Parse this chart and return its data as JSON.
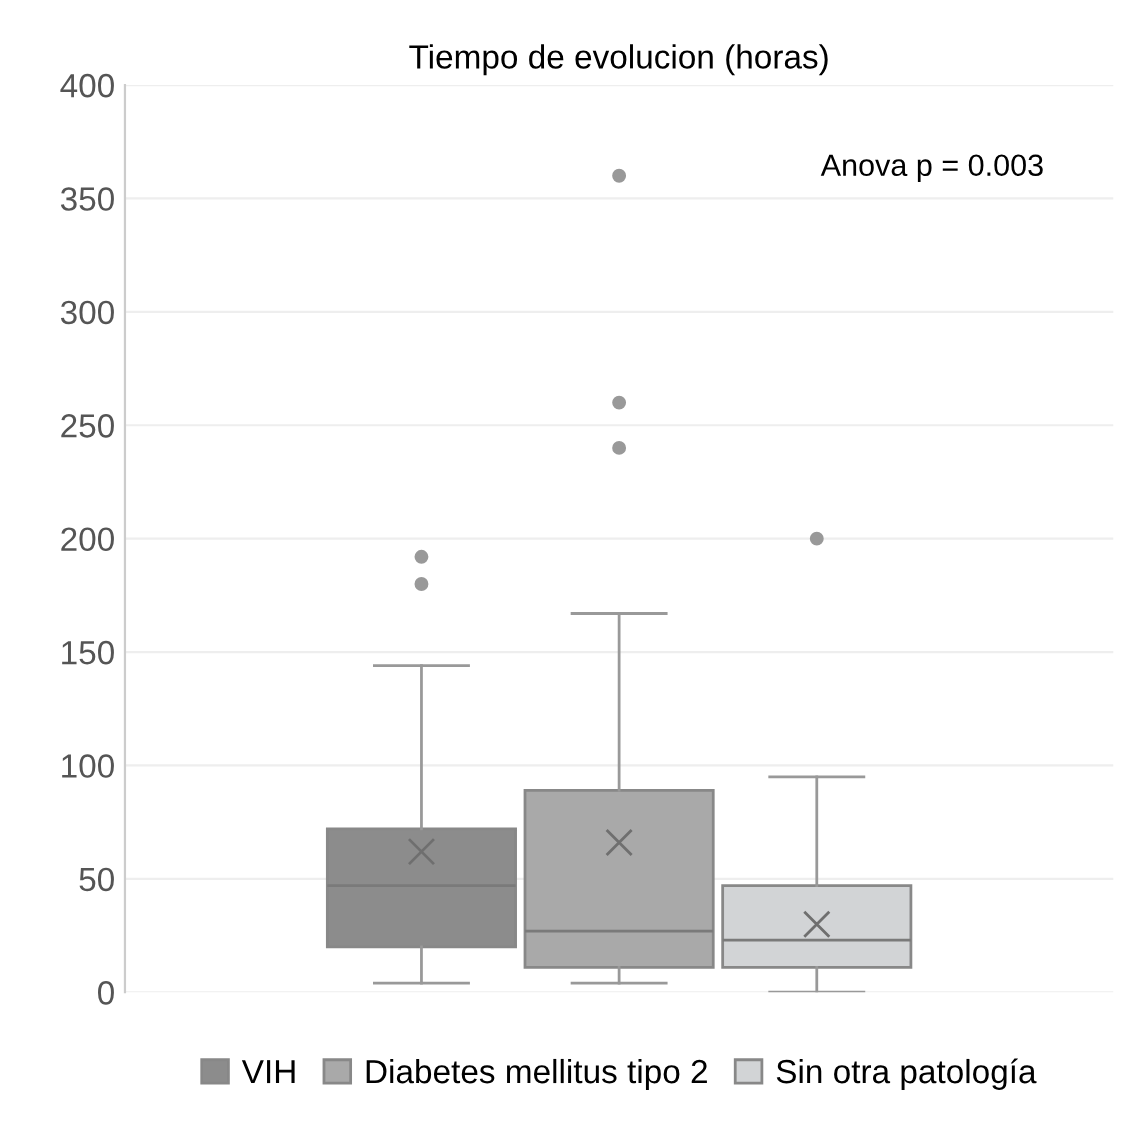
{
  "chart_data": {
    "type": "box",
    "title": "Tiempo de evolucion (horas)",
    "categories": [
      null
    ],
    "series": [
      {
        "name": "VIH",
        "color": "#8c8c8c",
        "boxes": [
          {
            "low": 4,
            "q1": 20,
            "median": 47,
            "q3": 72,
            "high": 144,
            "mean": 62,
            "outliers": [
              180,
              192
            ]
          }
        ]
      },
      {
        "name": "Diabetes mellitus tipo 2",
        "color": "#a9a9a9",
        "boxes": [
          {
            "low": 4,
            "q1": 11,
            "median": 27,
            "q3": 89,
            "high": 167,
            "mean": 66,
            "outliers": [
              240,
              260,
              360
            ]
          }
        ]
      },
      {
        "name": "Sin otra patología",
        "color": "#d2d4d6",
        "boxes": [
          {
            "low": 0,
            "q1": 11,
            "median": 23,
            "q3": 47,
            "high": 95,
            "mean": 30,
            "outliers": [
              200
            ]
          }
        ]
      }
    ],
    "ylim": [
      0,
      400
    ],
    "yticks": [
      0,
      50,
      100,
      150,
      200,
      250,
      300,
      350,
      400
    ],
    "annotations": [
      "Anova p = 0.003"
    ],
    "grid": "y",
    "legend": "bottom",
    "tick_labels": "y"
  }
}
